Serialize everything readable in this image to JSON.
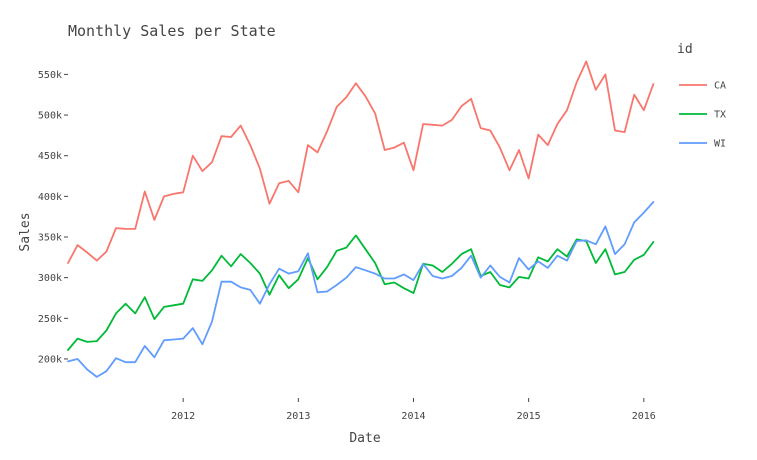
{
  "chart_data": {
    "type": "line",
    "title": "Monthly Sales per State",
    "xlabel": "Date",
    "ylabel": "Sales",
    "legend_title": "id",
    "legend_position": "right",
    "grid": false,
    "x_start": "2011-01",
    "xlim": [
      "2011-01",
      "2016-03"
    ],
    "ylim": [
      152000,
      580000
    ],
    "x_ticks": [
      {
        "label": "2012",
        "date": "2012-01"
      },
      {
        "label": "2013",
        "date": "2013-01"
      },
      {
        "label": "2014",
        "date": "2014-01"
      },
      {
        "label": "2015",
        "date": "2015-01"
      },
      {
        "label": "2016",
        "date": "2016-01"
      }
    ],
    "y_ticks": [
      {
        "label": "200k",
        "value": 200000
      },
      {
        "label": "250k",
        "value": 250000
      },
      {
        "label": "300k",
        "value": 300000
      },
      {
        "label": "350k",
        "value": 350000
      },
      {
        "label": "400k",
        "value": 400000
      },
      {
        "label": "450k",
        "value": 450000
      },
      {
        "label": "500k",
        "value": 500000
      },
      {
        "label": "550k",
        "value": 550000
      }
    ],
    "series": [
      {
        "name": "CA",
        "color": "#F8766D",
        "values": [
          318000,
          340000,
          331000,
          321000,
          332000,
          361000,
          360000,
          360000,
          406000,
          371000,
          400000,
          403000,
          405000,
          450000,
          431000,
          442000,
          474000,
          473000,
          487000,
          463000,
          434000,
          391000,
          416000,
          419000,
          405000,
          463000,
          454000,
          480000,
          510000,
          522000,
          539000,
          523000,
          502000,
          457000,
          460000,
          466000,
          432000,
          489000,
          488000,
          487000,
          494000,
          511000,
          520000,
          484000,
          481000,
          460000,
          432000,
          457000,
          422000,
          476000,
          463000,
          489000,
          506000,
          540000,
          566000,
          531000,
          550000,
          481000,
          479000,
          525000,
          506000,
          538000
        ]
      },
      {
        "name": "TX",
        "color": "#00BA38",
        "values": [
          211000,
          225000,
          221000,
          222000,
          235000,
          256000,
          268000,
          256000,
          276000,
          249000,
          264000,
          266000,
          268000,
          298000,
          296000,
          309000,
          327000,
          314000,
          329000,
          318000,
          305000,
          279000,
          303000,
          287000,
          298000,
          324000,
          298000,
          313000,
          333000,
          337000,
          352000,
          335000,
          318000,
          292000,
          294000,
          287000,
          281000,
          317000,
          315000,
          307000,
          317000,
          329000,
          335000,
          302000,
          307000,
          291000,
          288000,
          301000,
          299000,
          325000,
          320000,
          335000,
          326000,
          347000,
          345000,
          318000,
          335000,
          304000,
          307000,
          322000,
          328000,
          344000
        ]
      },
      {
        "name": "WI",
        "color": "#619CFF",
        "values": [
          197000,
          200000,
          187000,
          178000,
          185000,
          201000,
          196000,
          196000,
          216000,
          202000,
          223000,
          224000,
          225000,
          238000,
          218000,
          246000,
          295000,
          295000,
          288000,
          285000,
          268000,
          292000,
          311000,
          305000,
          308000,
          330000,
          282000,
          283000,
          291000,
          300000,
          313000,
          309000,
          305000,
          299000,
          299000,
          304000,
          297000,
          317000,
          302000,
          299000,
          302000,
          312000,
          327000,
          300000,
          315000,
          301000,
          294000,
          324000,
          310000,
          320000,
          312000,
          327000,
          321000,
          345000,
          346000,
          341000,
          363000,
          329000,
          341000,
          368000,
          380000,
          393000
        ]
      }
    ]
  }
}
